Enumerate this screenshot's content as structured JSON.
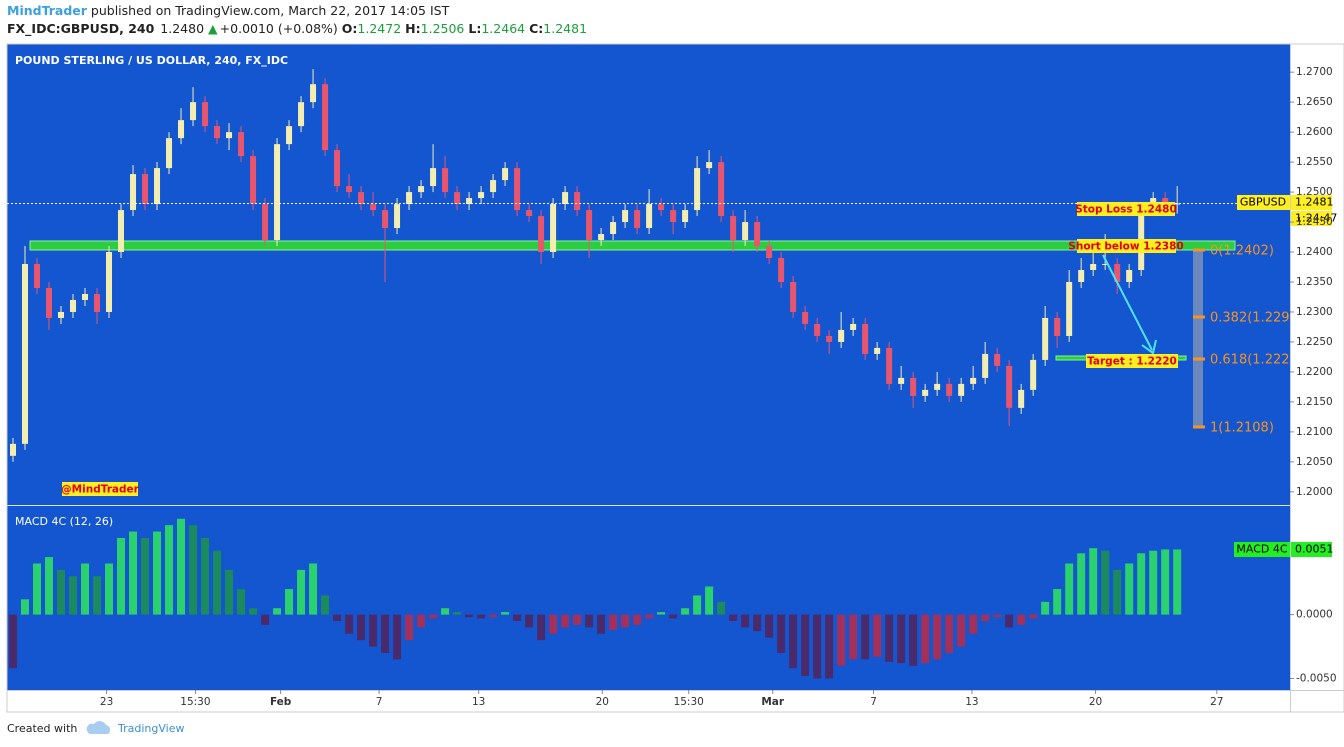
{
  "header": {
    "author": "MindTrader",
    "published": "published on TradingView.com, March 22, 2017 14:05 IST",
    "symbol": "FX_IDC:GBPUSD, 240",
    "last": "1.2480",
    "arrow": "▲",
    "change": "+0.0010 (+0.08%)",
    "ohlc": [
      {
        "label": "O:",
        "value": "1.2472"
      },
      {
        "label": "H:",
        "value": "1.2506"
      },
      {
        "label": "L:",
        "value": "1.2464"
      },
      {
        "label": "C:",
        "value": "1.2481"
      }
    ]
  },
  "chart_data": [
    {
      "type": "candlestick",
      "title": "POUND STERLING / US DOLLAR, 240, FX_IDC",
      "up_color": "#f3eeb0",
      "down_color": "#e8556d",
      "xlim": [
        -0.5,
        106.4
      ],
      "ylim": [
        1.1978,
        1.2747
      ],
      "yticks": [
        {
          "value": 1.2,
          "label": "1.2000"
        },
        {
          "value": 1.205,
          "label": "1.2050"
        },
        {
          "value": 1.21,
          "label": "1.2100"
        },
        {
          "value": 1.215,
          "label": "1.2150"
        },
        {
          "value": 1.22,
          "label": "1.2200"
        },
        {
          "value": 1.225,
          "label": "1.2250"
        },
        {
          "value": 1.23,
          "label": "1.2300"
        },
        {
          "value": 1.235,
          "label": "1.2350"
        },
        {
          "value": 1.24,
          "label": "1.2400"
        },
        {
          "value": 1.245,
          "label": "1.2450"
        },
        {
          "value": 1.25,
          "label": "1.2500"
        },
        {
          "value": 1.255,
          "label": "1.2550"
        },
        {
          "value": 1.26,
          "label": "1.2600"
        },
        {
          "value": 1.265,
          "label": "1.2650"
        },
        {
          "value": 1.27,
          "label": "1.2700"
        }
      ],
      "open": [
        1.206,
        1.208,
        1.238,
        1.234,
        1.229,
        1.23,
        1.232,
        1.233,
        1.23,
        1.24,
        1.247,
        1.253,
        1.248,
        1.254,
        1.259,
        1.262,
        1.265,
        1.261,
        1.259,
        1.26,
        1.256,
        1.248,
        1.242,
        1.258,
        1.261,
        1.265,
        1.268,
        1.257,
        1.251,
        1.25,
        1.248,
        1.247,
        1.244,
        1.248,
        1.25,
        1.251,
        1.254,
        1.25,
        1.248,
        1.249,
        1.25,
        1.252,
        1.254,
        1.247,
        1.246,
        1.24,
        1.248,
        1.25,
        1.247,
        1.242,
        1.243,
        1.245,
        1.247,
        1.244,
        1.248,
        1.247,
        1.245,
        1.247,
        1.254,
        1.255,
        1.246,
        1.242,
        1.245,
        1.241,
        1.239,
        1.235,
        1.23,
        1.228,
        1.226,
        1.225,
        1.227,
        1.228,
        1.223,
        1.224,
        1.218,
        1.219,
        1.216,
        1.217,
        1.218,
        1.216,
        1.218,
        1.219,
        1.223,
        1.221,
        1.214,
        1.217,
        1.222,
        1.229,
        1.226,
        1.235,
        1.237,
        1.238,
        1.238,
        1.235,
        1.237,
        1.247,
        1.249,
        1.248
      ],
      "high": [
        1.209,
        1.241,
        1.239,
        1.235,
        1.231,
        1.233,
        1.234,
        1.234,
        1.241,
        1.248,
        1.2545,
        1.254,
        1.255,
        1.26,
        1.264,
        1.2675,
        1.266,
        1.262,
        1.2615,
        1.261,
        1.257,
        1.249,
        1.259,
        1.262,
        1.266,
        1.2705,
        1.269,
        1.258,
        1.253,
        1.251,
        1.25,
        1.248,
        1.249,
        1.251,
        1.252,
        1.258,
        1.256,
        1.251,
        1.25,
        1.251,
        1.253,
        1.255,
        1.255,
        1.248,
        1.247,
        1.249,
        1.251,
        1.251,
        1.248,
        1.244,
        1.246,
        1.248,
        1.248,
        1.2505,
        1.249,
        1.248,
        1.248,
        1.256,
        1.257,
        1.256,
        1.247,
        1.247,
        1.246,
        1.242,
        1.24,
        1.236,
        1.231,
        1.229,
        1.227,
        1.23,
        1.229,
        1.229,
        1.225,
        1.225,
        1.221,
        1.22,
        1.218,
        1.22,
        1.219,
        1.219,
        1.221,
        1.225,
        1.224,
        1.222,
        1.218,
        1.223,
        1.231,
        1.23,
        1.237,
        1.239,
        1.24,
        1.243,
        1.239,
        1.238,
        1.248,
        1.25,
        1.25,
        1.251
      ],
      "low": [
        1.205,
        1.207,
        1.233,
        1.227,
        1.228,
        1.229,
        1.231,
        1.228,
        1.229,
        1.239,
        1.246,
        1.247,
        1.247,
        1.253,
        1.258,
        1.261,
        1.26,
        1.258,
        1.257,
        1.255,
        1.247,
        1.241,
        1.241,
        1.257,
        1.26,
        1.264,
        1.256,
        1.25,
        1.249,
        1.247,
        1.246,
        1.235,
        1.243,
        1.247,
        1.249,
        1.25,
        1.249,
        1.247,
        1.247,
        1.248,
        1.249,
        1.251,
        1.246,
        1.245,
        1.238,
        1.239,
        1.247,
        1.246,
        1.239,
        1.241,
        1.242,
        1.244,
        1.243,
        1.243,
        1.246,
        1.243,
        1.244,
        1.246,
        1.253,
        1.245,
        1.24,
        1.241,
        1.24,
        1.238,
        1.234,
        1.229,
        1.227,
        1.225,
        1.223,
        1.224,
        1.226,
        1.222,
        1.222,
        1.217,
        1.217,
        1.214,
        1.215,
        1.216,
        1.215,
        1.215,
        1.217,
        1.218,
        1.22,
        1.211,
        1.213,
        1.216,
        1.221,
        1.224,
        1.225,
        1.234,
        1.236,
        1.237,
        1.233,
        1.234,
        1.236,
        1.246,
        1.247,
        1.2464
      ],
      "close": [
        1.208,
        1.238,
        1.234,
        1.229,
        1.23,
        1.232,
        1.233,
        1.23,
        1.24,
        1.247,
        1.253,
        1.248,
        1.254,
        1.259,
        1.262,
        1.265,
        1.261,
        1.259,
        1.26,
        1.256,
        1.248,
        1.242,
        1.258,
        1.261,
        1.265,
        1.268,
        1.257,
        1.251,
        1.25,
        1.248,
        1.247,
        1.244,
        1.248,
        1.25,
        1.251,
        1.254,
        1.25,
        1.248,
        1.249,
        1.25,
        1.252,
        1.254,
        1.247,
        1.246,
        1.24,
        1.248,
        1.25,
        1.247,
        1.242,
        1.243,
        1.245,
        1.247,
        1.244,
        1.248,
        1.247,
        1.245,
        1.247,
        1.254,
        1.255,
        1.246,
        1.242,
        1.245,
        1.241,
        1.239,
        1.235,
        1.23,
        1.228,
        1.226,
        1.225,
        1.227,
        1.228,
        1.223,
        1.224,
        1.218,
        1.219,
        1.216,
        1.217,
        1.218,
        1.216,
        1.218,
        1.219,
        1.223,
        1.221,
        1.214,
        1.217,
        1.222,
        1.229,
        1.226,
        1.235,
        1.237,
        1.238,
        1.238,
        1.235,
        1.237,
        1.247,
        1.249,
        1.248,
        1.2481
      ],
      "annotations": [
        "Stop Loss 1.2480",
        "Short below 1.2380",
        "Target : 1.2220",
        "@MindTrader"
      ],
      "fib_labels": [
        "0(1.2402)",
        "0.382(1.229",
        "0.618(1.222",
        "1(1.2108)"
      ],
      "price_label": {
        "name": "GBPUSD",
        "value": "1.2481",
        "countdown": "1:24:47"
      }
    },
    {
      "type": "bar",
      "title": "MACD 4C (12, 26)",
      "colors": [
        "#2bd16f",
        "#1b8a5e",
        "#a3305a",
        "#4a2a6a"
      ],
      "xlim": [
        -0.5,
        106.4
      ],
      "ylim": [
        -0.0059,
        0.0085
      ],
      "yticks": [
        {
          "value": -0.005,
          "label": "-0.0050"
        },
        {
          "value": 0,
          "label": "0.0000"
        }
      ],
      "xticks": [
        {
          "value": 7.8,
          "label": "23"
        },
        {
          "value": 15.2,
          "label": "15:30"
        },
        {
          "value": 22.3,
          "label": "Feb"
        },
        {
          "value": 30.5,
          "label": "7"
        },
        {
          "value": 38.8,
          "label": "13"
        },
        {
          "value": 49.1,
          "label": "20"
        },
        {
          "value": 56.3,
          "label": "15:30"
        },
        {
          "value": 63.3,
          "label": "Mar"
        },
        {
          "value": 71.7,
          "label": "7"
        },
        {
          "value": 79.9,
          "label": "13"
        },
        {
          "value": 90.2,
          "label": "20"
        },
        {
          "value": 100.3,
          "label": "27"
        }
      ],
      "values": [
        -0.0042,
        0.0012,
        0.004,
        0.0045,
        0.0035,
        0.003,
        0.004,
        0.003,
        0.004,
        0.006,
        0.0065,
        0.006,
        0.0065,
        0.007,
        0.0075,
        0.007,
        0.006,
        0.005,
        0.0035,
        0.002,
        0.0005,
        -0.0008,
        0.0005,
        0.002,
        0.0035,
        0.004,
        0.0015,
        -0.0005,
        -0.0015,
        -0.002,
        -0.0025,
        -0.003,
        -0.0035,
        -0.002,
        -0.001,
        -0.0003,
        0.0005,
        0.0002,
        -0.0002,
        -0.0003,
        -0.0002,
        0.0002,
        -0.0005,
        -0.001,
        -0.002,
        -0.0015,
        -0.001,
        -0.0008,
        -0.001,
        -0.0015,
        -0.0012,
        -0.001,
        -0.0008,
        -0.0003,
        0.0002,
        -0.0003,
        0.0005,
        0.0015,
        0.0022,
        0.001,
        -0.0005,
        -0.001,
        -0.0013,
        -0.0018,
        -0.003,
        -0.0042,
        -0.0048,
        -0.005,
        -0.005,
        -0.004,
        -0.0035,
        -0.0035,
        -0.0033,
        -0.0037,
        -0.0038,
        -0.004,
        -0.0038,
        -0.0035,
        -0.003,
        -0.0025,
        -0.0015,
        -0.0005,
        -0.0002,
        -0.001,
        -0.0008,
        -0.0003,
        0.001,
        0.002,
        0.004,
        0.0048,
        0.0052,
        0.005,
        0.0035,
        0.004,
        0.0048,
        0.005,
        0.0051,
        0.0051
      ],
      "last_label": {
        "name": "MACD 4C",
        "value": "0.0051"
      }
    }
  ],
  "footer": {
    "created_with": "Created with",
    "brand": "TradingView"
  }
}
